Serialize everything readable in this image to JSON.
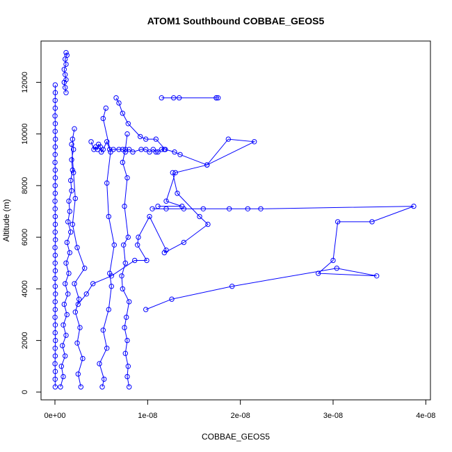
{
  "chart_data": {
    "type": "scatter",
    "title": "ATOM1 Southbound COBBAE_GEOS5",
    "xlabel": "COBBAE_GEOS5",
    "ylabel": "Altitude (m)",
    "xlim": [
      -1.5e-09,
      4.05e-08
    ],
    "ylim": [
      -300,
      13600
    ],
    "x_ticks": [
      {
        "value": 0,
        "label": "0e+00"
      },
      {
        "value": 1e-08,
        "label": "1e-08"
      },
      {
        "value": 2e-08,
        "label": "2e-08"
      },
      {
        "value": 3e-08,
        "label": "3e-08"
      },
      {
        "value": 4e-08,
        "label": "4e-08"
      }
    ],
    "y_ticks": [
      {
        "value": 0,
        "label": "0"
      },
      {
        "value": 2000,
        "label": "2000"
      },
      {
        "value": 4000,
        "label": "4000"
      },
      {
        "value": 6000,
        "label": "6000"
      },
      {
        "value": 8000,
        "label": "8000"
      },
      {
        "value": 10000,
        "label": "10000"
      },
      {
        "value": 12000,
        "label": "12000"
      }
    ],
    "grid": false,
    "series_color": "#0000ff",
    "marker": "open-circle",
    "series": [
      {
        "x": [
          3e-11,
          2e-11,
          4e-11,
          1e-11,
          3e-11,
          2e-11,
          5e-11,
          2e-11,
          4e-11,
          1e-11,
          3e-11,
          2e-11,
          5e-11,
          3e-11,
          1e-11,
          4e-11,
          2e-11,
          3e-11,
          1e-11,
          5e-11,
          2e-11,
          4e-11,
          3e-11,
          2e-11,
          1e-11,
          3e-11,
          2e-11,
          4e-11,
          3e-11,
          1e-11,
          2e-11,
          3e-11,
          5e-11,
          2e-11,
          4e-11,
          1e-11,
          3e-11,
          2e-11,
          4e-11,
          3e-11
        ],
        "y": [
          200,
          500,
          800,
          1100,
          1400,
          1700,
          2000,
          2300,
          2600,
          2900,
          3200,
          3500,
          3800,
          4100,
          4400,
          4700,
          5000,
          5300,
          5600,
          5900,
          6200,
          6500,
          6800,
          7100,
          7400,
          7700,
          8000,
          8300,
          8600,
          8900,
          9200,
          9500,
          9800,
          10100,
          10400,
          10700,
          11000,
          11300,
          11600,
          11900
        ]
      },
      {
        "x": [
          6e-10,
          9e-10,
          7e-10,
          1.1e-09,
          8e-10,
          1.2e-09,
          9e-10,
          1.3e-09,
          1e-09,
          1.4e-09,
          1.1e-09,
          1.5e-09,
          1.2e-09,
          1.6e-09,
          1.3e-09,
          1.7e-09,
          1.4e-09,
          1.6e-09,
          1.5e-09,
          1.8e-09,
          1.7e-09,
          1.9e-09,
          1.8e-09,
          2e-09,
          1.9e-09,
          2.1e-09
        ],
        "y": [
          200,
          600,
          1000,
          1400,
          1800,
          2200,
          2600,
          3000,
          3400,
          3800,
          4200,
          4600,
          5000,
          5400,
          5800,
          6200,
          6600,
          7000,
          7400,
          7800,
          8200,
          8600,
          9000,
          9400,
          9800,
          10200
        ]
      },
      {
        "x": [
          2.8e-09,
          2.5e-09,
          3e-09,
          2.4e-09,
          2.7e-09,
          2.2e-09,
          2.6e-09,
          2.1e-09,
          3.2e-09,
          2.4e-09,
          1.9e-09,
          2.2e-09,
          2e-09,
          1.8e-09
        ],
        "y": [
          200,
          700,
          1300,
          1900,
          2500,
          3100,
          3600,
          4200,
          4800,
          5600,
          6500,
          7500,
          8500,
          9600
        ]
      },
      {
        "x": [
          1.2e-09,
          1.1e-09,
          1e-09,
          1.2e-09,
          1.1e-09,
          1e-09,
          1.2e-09,
          1.1e-09,
          1.3e-09,
          1.2e-09
        ],
        "y": [
          11600,
          11800,
          12000,
          12100,
          12300,
          12500,
          12700,
          12900,
          13050,
          13150
        ]
      },
      {
        "x": [
          8e-09,
          7.8e-09,
          7.9e-09,
          7.6e-09,
          7.8e-09,
          7.5e-09,
          7.7e-09,
          8e-09,
          7.3e-09,
          7.2e-09,
          7.6e-09,
          7.4e-09,
          7.9e-09,
          7.5e-09,
          7.8e-09,
          7.3e-09,
          7.6e-09,
          7.8e-09
        ],
        "y": [
          200,
          600,
          1000,
          1500,
          2000,
          2500,
          2900,
          3500,
          4000,
          4500,
          5000,
          5700,
          6000,
          7200,
          8300,
          8900,
          9400,
          10000
        ]
      },
      {
        "x": [
          5.1e-09,
          5.3e-09,
          4.8e-09,
          5.6e-09,
          5.2e-09,
          5.8e-09,
          6.1e-09,
          5.9e-09,
          6.4e-09,
          5.8e-09,
          5.6e-09,
          6e-09,
          5.2e-09,
          5.5e-09
        ],
        "y": [
          200,
          500,
          1100,
          1700,
          2400,
          3200,
          4100,
          4600,
          5700,
          6800,
          8100,
          9300,
          10600,
          11000
        ]
      },
      {
        "x": [
          6.6e-09,
          6.9e-09,
          7.3e-09,
          7.9e-09,
          9.2e-09,
          9.8e-09,
          1.09e-08,
          1.19e-08,
          1.29e-08,
          1.35e-08,
          1.64e-08,
          1.87e-08,
          2.15e-08,
          1.64e-08,
          1.3e-08,
          1.2e-08,
          1.37e-08,
          1.11e-08
        ],
        "y": [
          11400,
          11200,
          10800,
          10400,
          9900,
          9800,
          9800,
          9400,
          9300,
          9200,
          8800,
          9800,
          9700,
          8800,
          8500,
          7400,
          7200,
          7200
        ]
      },
      {
        "x": [
          1.15e-08,
          1.28e-08,
          1.34e-08,
          1.74e-08,
          1.76e-08,
          1.74e-08
        ],
        "y": [
          11400,
          11400,
          11400,
          11400,
          11400,
          11400
        ]
      },
      {
        "x": [
          1.05e-08,
          1.2e-08,
          1.39e-08,
          1.6e-08,
          1.88e-08,
          2.08e-08,
          2.22e-08,
          3.87e-08,
          3.42e-08,
          3.05e-08,
          3e-08,
          2.84e-08,
          3.47e-08,
          3.04e-08,
          1.91e-08,
          1.26e-08,
          9.8e-09
        ],
        "y": [
          7100,
          7100,
          7100,
          7100,
          7100,
          7100,
          7100,
          7200,
          6600,
          6600,
          5100,
          4600,
          4500,
          4800,
          4100,
          3600,
          3200
        ]
      },
      {
        "x": [
          1.27e-08,
          1.32e-08,
          1.56e-08,
          1.65e-08,
          1.39e-08,
          1.18e-08,
          1.2e-08,
          1.02e-08,
          9e-09,
          8.9e-09,
          9.9e-09,
          8.6e-09,
          6.1e-09,
          4.1e-09,
          3.4e-09,
          2.5e-09
        ],
        "y": [
          8500,
          7700,
          6800,
          6500,
          5800,
          5400,
          5500,
          6800,
          6000,
          5700,
          5100,
          5100,
          4500,
          4200,
          3800,
          3400
        ]
      },
      {
        "x": [
          3.9e-09,
          4.2e-09,
          4.4e-09,
          4.6e-09,
          4.7e-09,
          4.9e-09,
          5e-09,
          5.2e-09,
          5.6e-09,
          5.9e-09,
          6.3e-09,
          6.9e-09,
          7.3e-09,
          7.6e-09,
          8e-09,
          8.4e-09,
          9.3e-09,
          9.8e-09,
          1.02e-08,
          1.06e-08,
          1.09e-08,
          1.11e-08,
          1.15e-08,
          1.18e-08
        ],
        "y": [
          9700,
          9400,
          9500,
          9400,
          9600,
          9500,
          9300,
          9400,
          9700,
          9400,
          9400,
          9400,
          9400,
          9300,
          9400,
          9300,
          9400,
          9400,
          9300,
          9400,
          9300,
          9300,
          9400,
          9400
        ]
      }
    ]
  }
}
